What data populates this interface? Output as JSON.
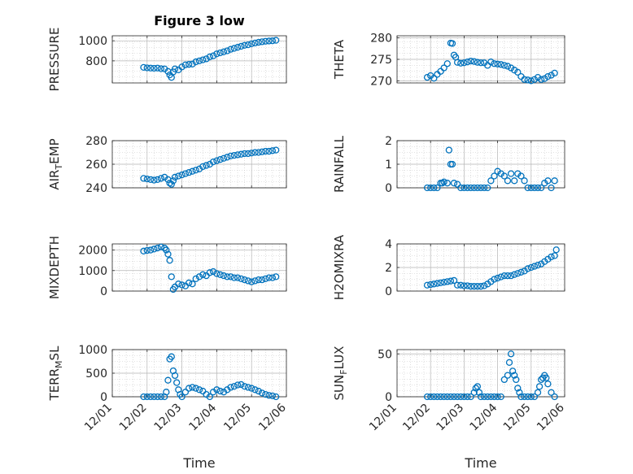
{
  "figure_title": "Figure 3 low",
  "marker_color": "#0072BD",
  "chart_data": [
    {
      "type": "scatter",
      "ylabel": "PRESSURE",
      "ylim": [
        580,
        1050
      ],
      "yticks": [
        800,
        1000
      ],
      "xlim": [
        0,
        5
      ],
      "xtick_labels": [],
      "title": "Figure 3 low",
      "x": [
        0.9,
        1.0,
        1.1,
        1.2,
        1.3,
        1.4,
        1.5,
        1.6,
        1.65,
        1.7,
        1.75,
        1.8,
        1.9,
        2.0,
        2.1,
        2.2,
        2.3,
        2.4,
        2.5,
        2.6,
        2.7,
        2.8,
        2.9,
        3.0,
        3.1,
        3.2,
        3.3,
        3.4,
        3.5,
        3.6,
        3.7,
        3.8,
        3.9,
        4.0,
        4.1,
        4.2,
        4.3,
        4.4,
        4.5,
        4.6,
        4.7
      ],
      "y": [
        735,
        730,
        728,
        726,
        728,
        722,
        720,
        695,
        660,
        635,
        690,
        720,
        710,
        740,
        760,
        765,
        768,
        790,
        800,
        810,
        820,
        840,
        850,
        870,
        880,
        890,
        900,
        915,
        925,
        935,
        945,
        955,
        960,
        970,
        978,
        985,
        990,
        995,
        998,
        1000,
        1005
      ]
    },
    {
      "type": "scatter",
      "ylabel": "THETA",
      "ylim": [
        269.5,
        280.5
      ],
      "yticks": [
        270,
        275,
        280
      ],
      "xlim": [
        0,
        5
      ],
      "xtick_labels": [],
      "x": [
        0.9,
        1.0,
        1.1,
        1.2,
        1.3,
        1.4,
        1.5,
        1.6,
        1.65,
        1.7,
        1.75,
        1.8,
        1.9,
        2.0,
        2.1,
        2.2,
        2.3,
        2.4,
        2.5,
        2.6,
        2.7,
        2.8,
        2.9,
        3.0,
        3.1,
        3.2,
        3.3,
        3.4,
        3.5,
        3.6,
        3.7,
        3.8,
        3.9,
        4.0,
        4.1,
        4.2,
        4.3,
        4.4,
        4.5,
        4.6,
        4.7
      ],
      "y": [
        270.8,
        271.2,
        270.6,
        271.5,
        272.2,
        273.0,
        274.0,
        278.8,
        278.7,
        276.0,
        275.5,
        274.3,
        274.1,
        274.2,
        274.4,
        274.6,
        274.5,
        274.3,
        274.2,
        274.2,
        273.6,
        274.4,
        274.0,
        273.9,
        273.8,
        273.6,
        273.4,
        273.0,
        272.5,
        272.0,
        271.0,
        270.3,
        270.2,
        270.0,
        270.3,
        270.8,
        270.3,
        270.5,
        271.0,
        271.3,
        271.8
      ]
    },
    {
      "type": "scatter",
      "ylabel": "AIR_TEMP",
      "ylim": [
        240,
        280
      ],
      "yticks": [
        240,
        260,
        280
      ],
      "xlim": [
        0,
        5
      ],
      "xtick_labels": [],
      "x": [
        0.9,
        1.0,
        1.1,
        1.2,
        1.3,
        1.4,
        1.5,
        1.6,
        1.65,
        1.7,
        1.75,
        1.8,
        1.9,
        2.0,
        2.1,
        2.2,
        2.3,
        2.4,
        2.5,
        2.6,
        2.7,
        2.8,
        2.9,
        3.0,
        3.1,
        3.2,
        3.3,
        3.4,
        3.5,
        3.6,
        3.7,
        3.8,
        3.9,
        4.0,
        4.1,
        4.2,
        4.3,
        4.4,
        4.5,
        4.6,
        4.7
      ],
      "y": [
        248,
        247.5,
        247,
        246.5,
        247,
        248,
        249,
        247,
        244,
        243,
        246,
        249,
        250,
        251,
        252,
        253,
        254,
        255,
        256,
        258,
        259,
        260,
        262,
        263,
        264,
        265,
        266,
        267,
        267.5,
        268,
        268.5,
        269,
        269,
        269.5,
        270,
        270,
        270.5,
        271,
        271,
        271.5,
        272
      ]
    },
    {
      "type": "scatter",
      "ylabel": "RAINFALL",
      "ylim": [
        0,
        2
      ],
      "yticks": [
        0,
        1,
        2
      ],
      "xlim": [
        0,
        5
      ],
      "xtick_labels": [],
      "x": [
        0.9,
        1.0,
        1.1,
        1.2,
        1.3,
        1.35,
        1.4,
        1.5,
        1.55,
        1.6,
        1.65,
        1.7,
        1.8,
        1.9,
        2.0,
        2.1,
        2.2,
        2.3,
        2.4,
        2.5,
        2.6,
        2.7,
        2.8,
        2.9,
        3.0,
        3.1,
        3.2,
        3.3,
        3.4,
        3.5,
        3.6,
        3.7,
        3.8,
        3.9,
        4.0,
        4.1,
        4.2,
        4.3,
        4.4,
        4.5,
        4.6,
        4.7
      ],
      "y": [
        0,
        0,
        0,
        0,
        0.2,
        0.2,
        0.25,
        0.2,
        1.6,
        1.0,
        1.0,
        0.2,
        0.15,
        0,
        0,
        0,
        0,
        0,
        0,
        0,
        0,
        0,
        0.3,
        0.5,
        0.7,
        0.6,
        0.5,
        0.3,
        0.6,
        0.3,
        0.6,
        0.5,
        0.3,
        0,
        0,
        0,
        0,
        0,
        0.2,
        0.3,
        0,
        0.3
      ]
    },
    {
      "type": "scatter",
      "ylabel": "MIXDEPTH",
      "ylim": [
        0,
        2300
      ],
      "yticks": [
        0,
        1000,
        2000
      ],
      "xlim": [
        0,
        5
      ],
      "xtick_labels": [],
      "x": [
        0.9,
        1.0,
        1.1,
        1.2,
        1.3,
        1.4,
        1.5,
        1.55,
        1.6,
        1.65,
        1.7,
        1.75,
        1.8,
        1.9,
        2.0,
        2.1,
        2.2,
        2.3,
        2.4,
        2.5,
        2.6,
        2.7,
        2.8,
        2.9,
        3.0,
        3.1,
        3.2,
        3.3,
        3.4,
        3.5,
        3.6,
        3.7,
        3.8,
        3.9,
        4.0,
        4.1,
        4.2,
        4.3,
        4.4,
        4.5,
        4.6,
        4.7
      ],
      "y": [
        1950,
        1980,
        2000,
        2050,
        2100,
        2150,
        2100,
        2000,
        1800,
        1500,
        700,
        80,
        200,
        350,
        300,
        250,
        400,
        350,
        600,
        700,
        800,
        750,
        900,
        950,
        850,
        800,
        750,
        700,
        700,
        650,
        650,
        600,
        550,
        500,
        450,
        500,
        550,
        550,
        600,
        650,
        650,
        700
      ]
    },
    {
      "type": "scatter",
      "ylabel": "H2OMIXRA",
      "ylim": [
        0,
        4
      ],
      "yticks": [
        0,
        2,
        4
      ],
      "xlim": [
        0,
        5
      ],
      "xtick_labels": [],
      "x": [
        0.9,
        1.0,
        1.1,
        1.2,
        1.3,
        1.4,
        1.5,
        1.6,
        1.7,
        1.8,
        1.9,
        2.0,
        2.1,
        2.2,
        2.3,
        2.4,
        2.5,
        2.6,
        2.7,
        2.8,
        2.9,
        3.0,
        3.1,
        3.2,
        3.3,
        3.4,
        3.5,
        3.6,
        3.7,
        3.8,
        3.9,
        4.0,
        4.1,
        4.2,
        4.3,
        4.4,
        4.5,
        4.6,
        4.7,
        4.75
      ],
      "y": [
        0.5,
        0.55,
        0.6,
        0.65,
        0.7,
        0.75,
        0.8,
        0.85,
        0.9,
        0.5,
        0.5,
        0.45,
        0.45,
        0.4,
        0.4,
        0.4,
        0.4,
        0.45,
        0.6,
        0.8,
        1.0,
        1.1,
        1.2,
        1.3,
        1.3,
        1.3,
        1.4,
        1.5,
        1.6,
        1.7,
        1.9,
        2.0,
        2.1,
        2.2,
        2.3,
        2.5,
        2.7,
        2.9,
        3.0,
        3.5
      ]
    },
    {
      "type": "scatter",
      "ylabel": "TERR_MSL",
      "ylim": [
        0,
        1000
      ],
      "yticks": [
        0,
        500,
        1000
      ],
      "xlim": [
        0,
        5
      ],
      "xtick_labels": [
        "12/01",
        "12/02",
        "12/03",
        "12/04",
        "12/05",
        "12/06"
      ],
      "x": [
        0.9,
        1.0,
        1.1,
        1.2,
        1.3,
        1.4,
        1.5,
        1.55,
        1.6,
        1.65,
        1.7,
        1.75,
        1.8,
        1.85,
        1.9,
        1.95,
        2.0,
        2.1,
        2.2,
        2.3,
        2.4,
        2.5,
        2.6,
        2.7,
        2.8,
        2.9,
        3.0,
        3.1,
        3.2,
        3.3,
        3.4,
        3.5,
        3.6,
        3.7,
        3.8,
        3.9,
        4.0,
        4.1,
        4.2,
        4.3,
        4.4,
        4.5,
        4.6,
        4.7
      ],
      "y": [
        0,
        0,
        0,
        0,
        0,
        0,
        0,
        100,
        350,
        800,
        850,
        550,
        450,
        300,
        150,
        50,
        0,
        100,
        180,
        200,
        180,
        150,
        120,
        50,
        0,
        100,
        150,
        120,
        100,
        150,
        200,
        220,
        250,
        260,
        220,
        200,
        180,
        150,
        120,
        80,
        50,
        30,
        20,
        0
      ]
    },
    {
      "type": "scatter",
      "ylabel": "SUN_FLUX",
      "ylim": [
        0,
        55
      ],
      "yticks": [
        0,
        50
      ],
      "xlim": [
        0,
        5
      ],
      "xtick_labels": [
        "12/01",
        "12/02",
        "12/03",
        "12/04",
        "12/05",
        "12/06"
      ],
      "x": [
        0.9,
        1.0,
        1.1,
        1.2,
        1.3,
        1.4,
        1.5,
        1.6,
        1.7,
        1.8,
        1.9,
        2.0,
        2.1,
        2.2,
        2.3,
        2.35,
        2.4,
        2.45,
        2.5,
        2.6,
        2.7,
        2.8,
        2.9,
        3.0,
        3.1,
        3.2,
        3.3,
        3.35,
        3.4,
        3.45,
        3.5,
        3.55,
        3.6,
        3.65,
        3.7,
        3.8,
        3.9,
        4.0,
        4.1,
        4.2,
        4.25,
        4.3,
        4.35,
        4.4,
        4.45,
        4.5,
        4.6,
        4.7
      ],
      "y": [
        0,
        0,
        0,
        0,
        0,
        0,
        0,
        0,
        0,
        0,
        0,
        0,
        0,
        0,
        5,
        10,
        12,
        5,
        0,
        0,
        0,
        0,
        0,
        0,
        0,
        20,
        25,
        40,
        50,
        30,
        25,
        20,
        10,
        5,
        0,
        0,
        0,
        0,
        0,
        5,
        12,
        20,
        22,
        25,
        22,
        15,
        5,
        0
      ]
    }
  ]
}
